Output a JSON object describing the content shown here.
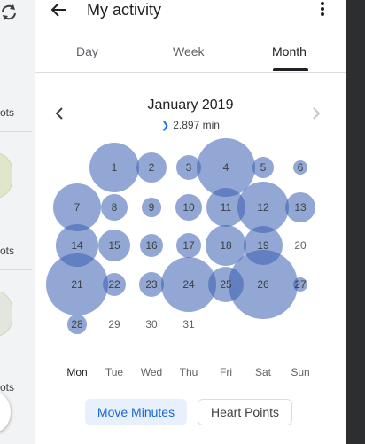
{
  "left_strip": {
    "texts": [
      "ots",
      "ots",
      "ots"
    ]
  },
  "appbar": {
    "title": "My activity"
  },
  "tabs": [
    {
      "label": "Day",
      "active": false
    },
    {
      "label": "Week",
      "active": false
    },
    {
      "label": "Month",
      "active": true
    }
  ],
  "calendar": {
    "month_title": "January 2019",
    "summary_value": "2.897 min",
    "days": [
      {
        "label": "1",
        "level": 1.0
      },
      {
        "label": "2",
        "level": 0.62
      },
      {
        "label": "3",
        "level": 0.5
      },
      {
        "label": "4",
        "level": 1.18
      },
      {
        "label": "5",
        "level": 0.42
      },
      {
        "label": "6",
        "level": 0.3
      },
      {
        "label": "7",
        "level": 0.98
      },
      {
        "label": "8",
        "level": 0.55
      },
      {
        "label": "9",
        "level": 0.38
      },
      {
        "label": "10",
        "level": 0.55
      },
      {
        "label": "11",
        "level": 0.8
      },
      {
        "label": "12",
        "level": 1.05
      },
      {
        "label": "13",
        "level": 0.62
      },
      {
        "label": "14",
        "level": 0.85
      },
      {
        "label": "15",
        "level": 0.65
      },
      {
        "label": "16",
        "level": 0.48
      },
      {
        "label": "17",
        "level": 0.5
      },
      {
        "label": "18",
        "level": 0.82
      },
      {
        "label": "19",
        "level": 0.8
      },
      {
        "label": "20",
        "level": 0
      },
      {
        "label": "21",
        "level": 1.25
      },
      {
        "label": "22",
        "level": 0.48
      },
      {
        "label": "23",
        "level": 0.5
      },
      {
        "label": "24",
        "level": 1.1
      },
      {
        "label": "25",
        "level": 0.72
      },
      {
        "label": "26",
        "level": 1.38
      },
      {
        "label": "27",
        "level": 0.3
      },
      {
        "label": "28",
        "level": 0.38
      },
      {
        "label": "29",
        "level": 0
      },
      {
        "label": "30",
        "level": 0
      },
      {
        "label": "31",
        "level": 0
      }
    ],
    "weekdays": [
      "Mon",
      "Tue",
      "Wed",
      "Thu",
      "Fri",
      "Sat",
      "Sun"
    ],
    "highlight_weekday": "Mon",
    "bubble_color": "#385eb0"
  },
  "buttons": {
    "move_minutes": "Move Minutes",
    "heart_points": "Heart Points"
  },
  "icons": {
    "sync": "sync-icon",
    "back": "arrow-back-icon",
    "more": "more-vert-icon",
    "prev": "chevron-left-icon",
    "next": "chevron-right-icon"
  }
}
